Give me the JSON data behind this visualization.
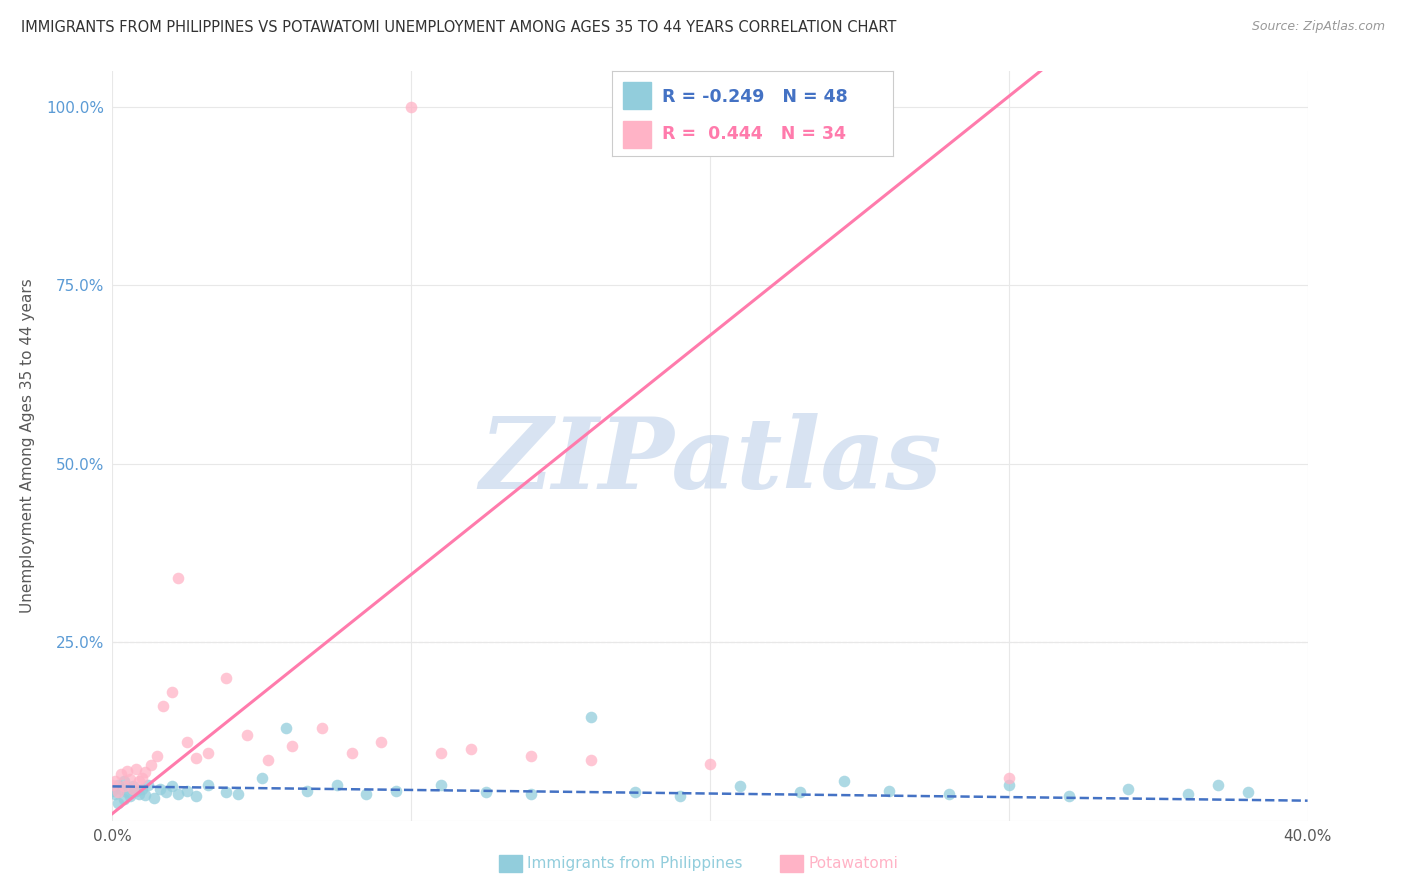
{
  "title": "IMMIGRANTS FROM PHILIPPINES VS POTAWATOMI UNEMPLOYMENT AMONG AGES 35 TO 44 YEARS CORRELATION CHART",
  "source": "Source: ZipAtlas.com",
  "ylabel_label": "Unemployment Among Ages 35 to 44 years",
  "xlim": [
    0.0,
    0.4
  ],
  "ylim": [
    0.0,
    1.05
  ],
  "xtick_vals": [
    0.0,
    0.1,
    0.2,
    0.3,
    0.4
  ],
  "xtick_labels": [
    "0.0%",
    "",
    "",
    "",
    "40.0%"
  ],
  "ytick_vals": [
    0.0,
    0.25,
    0.5,
    0.75,
    1.0
  ],
  "ytick_labels": [
    "",
    "25.0%",
    "50.0%",
    "75.0%",
    "100.0%"
  ],
  "blue_scatter_color": "#92CDDC",
  "pink_scatter_color": "#FFB3C6",
  "blue_line_color": "#4472C4",
  "pink_line_color": "#FF7BAC",
  "blue_dashed_color": "#B8D4E8",
  "R_blue": -0.249,
  "N_blue": 48,
  "R_pink": 0.444,
  "N_pink": 34,
  "watermark_text": "ZIPatlas",
  "watermark_color": "#C8D8ED",
  "grid_color": "#E8E8E8",
  "legend_label_blue": "Immigrants from Philippines",
  "legend_label_pink": "Potawatomi",
  "blue_tick_color": "#5B9BD5",
  "axis_label_color": "#595959"
}
